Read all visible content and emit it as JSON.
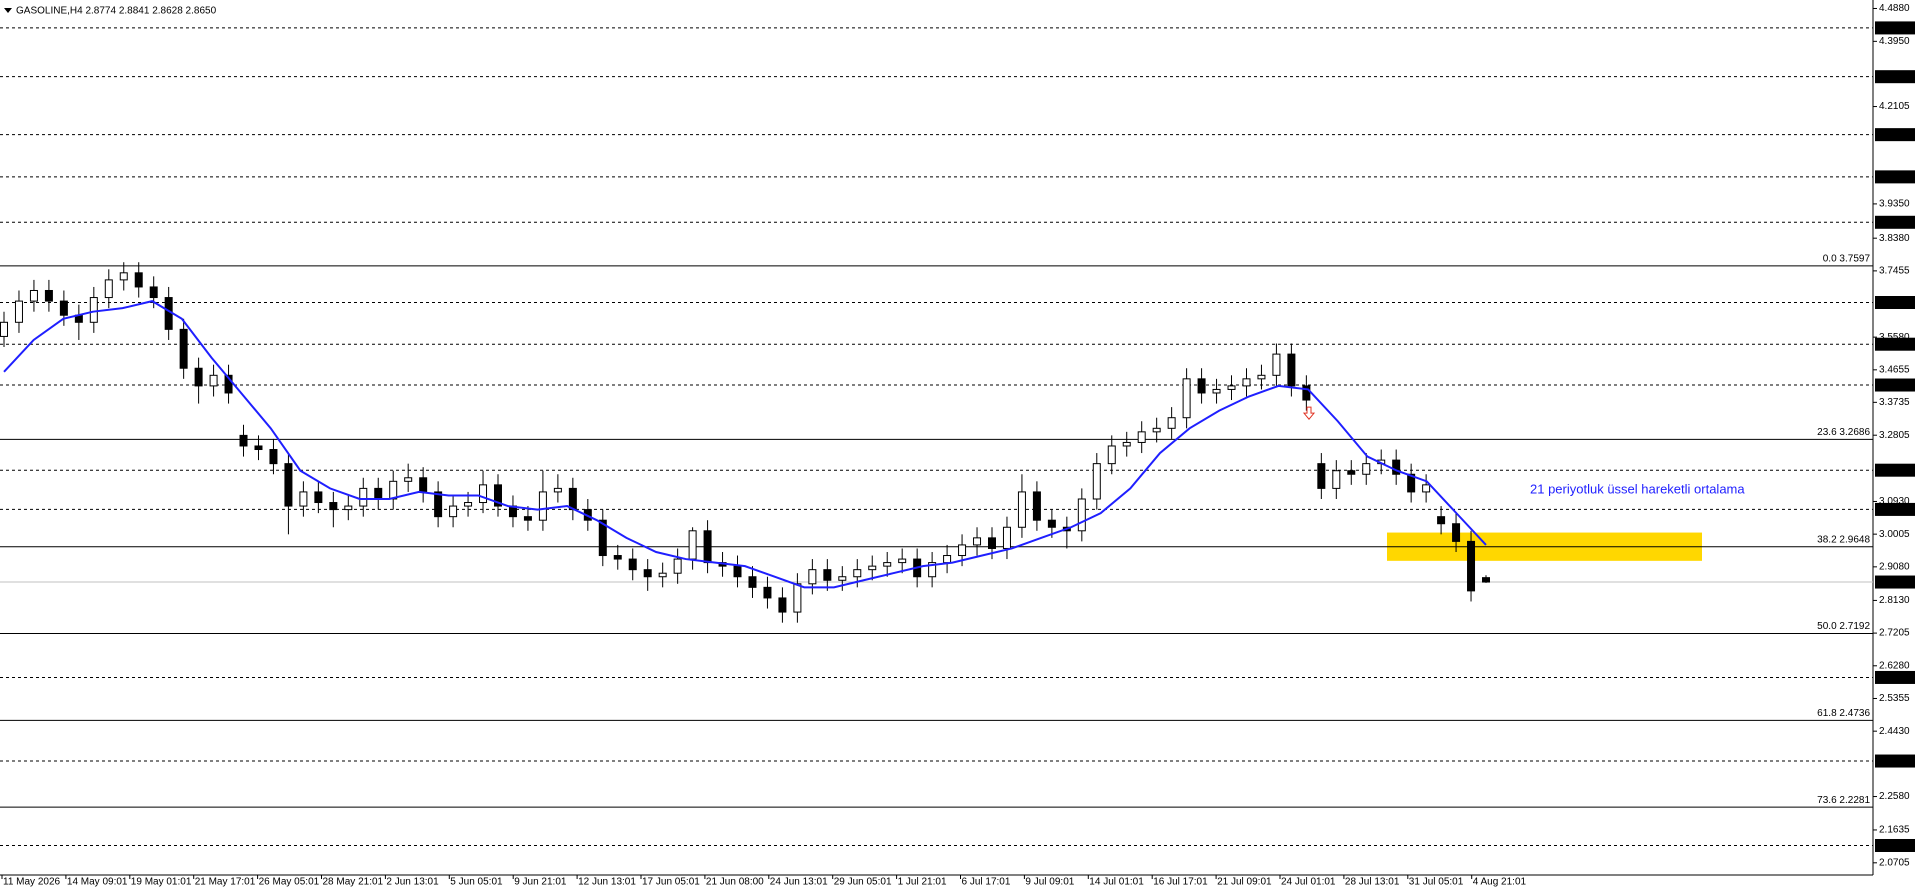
{
  "chart_data": {
    "type": "candlestick",
    "title": "GASOLINE,H4 2.8774 2.8841 2.8628 2.8650",
    "categories": [
      "11 May 2026",
      "14 May 09:01",
      "19 May 01:01",
      "21 May 17:01",
      "26 May 05:01",
      "28 May 21:01",
      "2 Jun 13:01",
      "5 Jun 05:01",
      "9 Jun 21:01",
      "12 Jun 13:01",
      "17 Jun 05:01",
      "21 Jun 08:00",
      "24 Jun 13:01",
      "29 Jun 05:01",
      "1 Jul 21:01",
      "6 Jul 17:01",
      "9 Jul 09:01",
      "14 Jul 01:01",
      "16 Jul 17:01",
      "21 Jul 09:01",
      "24 Jul 01:01",
      "28 Jul 13:01",
      "31 Jul 05:01",
      "4 Aug 21:01"
    ],
    "ylim": [
      2.036,
      4.512
    ],
    "yticks": [
      {
        "value": 4.488,
        "label": "4.4880"
      },
      {
        "value": 4.395,
        "label": "4.3950"
      },
      {
        "value": 4.2105,
        "label": "4.2105"
      },
      {
        "value": 3.935,
        "label": "3.9350"
      },
      {
        "value": 3.838,
        "label": "3.8380"
      },
      {
        "value": 3.7455,
        "label": "3.7455"
      },
      {
        "value": 3.558,
        "label": "3.5580"
      },
      {
        "value": 3.4655,
        "label": "3.4655"
      },
      {
        "value": 3.3735,
        "label": "3.3735"
      },
      {
        "value": 3.2805,
        "label": "3.2805"
      },
      {
        "value": 3.093,
        "label": "3.0930"
      },
      {
        "value": 3.0005,
        "label": "3.0005"
      },
      {
        "value": 2.908,
        "label": "2.9080"
      },
      {
        "value": 2.813,
        "label": "2.8130"
      },
      {
        "value": 2.7205,
        "label": "2.7205"
      },
      {
        "value": 2.628,
        "label": "2.6280"
      },
      {
        "value": 2.5355,
        "label": "2.5355"
      },
      {
        "value": 2.443,
        "label": "2.4430"
      },
      {
        "value": 2.258,
        "label": "2.2580"
      },
      {
        "value": 2.1635,
        "label": "2.1635"
      },
      {
        "value": 2.0705,
        "label": "2.0705"
      }
    ],
    "levels": [
      {
        "value": 4.433,
        "label": "4.4330"
      },
      {
        "value": 4.295,
        "label": "4.2950"
      },
      {
        "value": 4.131,
        "label": "4.1310"
      },
      {
        "value": 4.0115,
        "label": "4.0115"
      },
      {
        "value": 3.883,
        "label": "3.8830"
      },
      {
        "value": 3.656,
        "label": "3.6560"
      },
      {
        "value": 3.538,
        "label": "3.5380"
      },
      {
        "value": 3.4225,
        "label": "3.4225"
      },
      {
        "value": 3.1815,
        "label": "3.1815"
      },
      {
        "value": 3.0705,
        "label": "3.0705"
      },
      {
        "value": 2.595,
        "label": "2.5950"
      },
      {
        "value": 2.3585,
        "label": "2.3585"
      },
      {
        "value": 2.1195,
        "label": "2.1195"
      }
    ],
    "fib_levels": [
      {
        "value": 3.7597,
        "label": "0.0 3.7597"
      },
      {
        "value": 3.2686,
        "label": "23.6 3.2686"
      },
      {
        "value": 2.9648,
        "label": "38.2 2.9648"
      },
      {
        "value": 2.7192,
        "label": "50.0 2.7192"
      },
      {
        "value": 2.4736,
        "label": "61.8 2.4736"
      },
      {
        "value": 2.2281,
        "label": "73.6 2.2281"
      }
    ],
    "current_price": {
      "value": 2.865,
      "label": "2.8650"
    },
    "candles": [
      [
        3.56,
        3.63,
        3.53,
        3.6
      ],
      [
        3.6,
        3.69,
        3.57,
        3.66
      ],
      [
        3.66,
        3.72,
        3.63,
        3.69
      ],
      [
        3.69,
        3.72,
        3.63,
        3.66
      ],
      [
        3.66,
        3.69,
        3.59,
        3.62
      ],
      [
        3.62,
        3.65,
        3.55,
        3.6
      ],
      [
        3.6,
        3.7,
        3.57,
        3.67
      ],
      [
        3.67,
        3.75,
        3.64,
        3.72
      ],
      [
        3.72,
        3.77,
        3.69,
        3.74
      ],
      [
        3.74,
        3.77,
        3.67,
        3.7
      ],
      [
        3.7,
        3.73,
        3.64,
        3.67
      ],
      [
        3.67,
        3.7,
        3.55,
        3.58
      ],
      [
        3.58,
        3.61,
        3.44,
        3.47
      ],
      [
        3.47,
        3.5,
        3.37,
        3.42
      ],
      [
        3.42,
        3.48,
        3.39,
        3.45
      ],
      [
        3.45,
        3.48,
        3.37,
        3.4
      ],
      [
        3.28,
        3.31,
        3.22,
        3.25
      ],
      [
        3.25,
        3.28,
        3.21,
        3.24
      ],
      [
        3.24,
        3.27,
        3.17,
        3.2
      ],
      [
        3.2,
        3.23,
        3.0,
        3.08
      ],
      [
        3.08,
        3.15,
        3.05,
        3.12
      ],
      [
        3.12,
        3.15,
        3.06,
        3.09
      ],
      [
        3.09,
        3.12,
        3.02,
        3.07
      ],
      [
        3.07,
        3.11,
        3.04,
        3.08
      ],
      [
        3.08,
        3.16,
        3.05,
        3.13
      ],
      [
        3.13,
        3.16,
        3.07,
        3.1
      ],
      [
        3.1,
        3.18,
        3.07,
        3.15
      ],
      [
        3.15,
        3.2,
        3.12,
        3.16
      ],
      [
        3.16,
        3.19,
        3.09,
        3.12
      ],
      [
        3.12,
        3.15,
        3.02,
        3.05
      ],
      [
        3.05,
        3.11,
        3.02,
        3.08
      ],
      [
        3.08,
        3.12,
        3.05,
        3.09
      ],
      [
        3.09,
        3.18,
        3.06,
        3.14
      ],
      [
        3.14,
        3.17,
        3.05,
        3.08
      ],
      [
        3.08,
        3.11,
        3.02,
        3.05
      ],
      [
        3.05,
        3.08,
        3.01,
        3.04
      ],
      [
        3.04,
        3.18,
        3.01,
        3.12
      ],
      [
        3.12,
        3.17,
        3.09,
        3.13
      ],
      [
        3.13,
        3.16,
        3.04,
        3.07
      ],
      [
        3.07,
        3.1,
        3.01,
        3.04
      ],
      [
        3.04,
        3.07,
        2.91,
        2.94
      ],
      [
        2.94,
        2.97,
        2.9,
        2.93
      ],
      [
        2.93,
        2.96,
        2.87,
        2.9
      ],
      [
        2.9,
        2.93,
        2.84,
        2.88
      ],
      [
        2.88,
        2.92,
        2.85,
        2.89
      ],
      [
        2.89,
        2.96,
        2.86,
        2.93
      ],
      [
        2.93,
        3.02,
        2.9,
        3.01
      ],
      [
        3.01,
        3.04,
        2.89,
        2.92
      ],
      [
        2.92,
        2.95,
        2.88,
        2.91
      ],
      [
        2.91,
        2.94,
        2.85,
        2.88
      ],
      [
        2.88,
        2.91,
        2.82,
        2.85
      ],
      [
        2.85,
        2.88,
        2.79,
        2.82
      ],
      [
        2.82,
        2.85,
        2.75,
        2.78
      ],
      [
        2.78,
        2.89,
        2.75,
        2.86
      ],
      [
        2.86,
        2.93,
        2.83,
        2.9
      ],
      [
        2.9,
        2.93,
        2.84,
        2.87
      ],
      [
        2.87,
        2.91,
        2.84,
        2.88
      ],
      [
        2.88,
        2.93,
        2.85,
        2.9
      ],
      [
        2.9,
        2.94,
        2.87,
        2.91
      ],
      [
        2.91,
        2.95,
        2.88,
        2.92
      ],
      [
        2.92,
        2.96,
        2.89,
        2.93
      ],
      [
        2.93,
        2.96,
        2.85,
        2.88
      ],
      [
        2.88,
        2.95,
        2.85,
        2.92
      ],
      [
        2.92,
        2.97,
        2.89,
        2.94
      ],
      [
        2.94,
        3.0,
        2.91,
        2.97
      ],
      [
        2.97,
        3.02,
        2.94,
        2.99
      ],
      [
        2.99,
        3.02,
        2.93,
        2.96
      ],
      [
        2.96,
        3.05,
        2.93,
        3.02
      ],
      [
        3.02,
        3.17,
        2.99,
        3.12
      ],
      [
        3.12,
        3.15,
        3.01,
        3.04
      ],
      [
        3.04,
        3.07,
        2.99,
        3.02
      ],
      [
        3.02,
        3.05,
        2.96,
        3.01
      ],
      [
        3.01,
        3.13,
        2.98,
        3.1
      ],
      [
        3.1,
        3.23,
        3.07,
        3.2
      ],
      [
        3.2,
        3.28,
        3.17,
        3.25
      ],
      [
        3.25,
        3.29,
        3.22,
        3.26
      ],
      [
        3.26,
        3.32,
        3.23,
        3.29
      ],
      [
        3.29,
        3.33,
        3.26,
        3.3
      ],
      [
        3.3,
        3.36,
        3.27,
        3.33
      ],
      [
        3.33,
        3.47,
        3.3,
        3.44
      ],
      [
        3.44,
        3.47,
        3.37,
        3.4
      ],
      [
        3.4,
        3.44,
        3.37,
        3.41
      ],
      [
        3.41,
        3.45,
        3.38,
        3.42
      ],
      [
        3.42,
        3.47,
        3.39,
        3.44
      ],
      [
        3.44,
        3.48,
        3.41,
        3.45
      ],
      [
        3.45,
        3.54,
        3.42,
        3.51
      ],
      [
        3.51,
        3.54,
        3.39,
        3.42
      ],
      [
        3.42,
        3.45,
        3.35,
        3.38
      ],
      [
        3.2,
        3.23,
        3.1,
        3.13
      ],
      [
        3.13,
        3.21,
        3.1,
        3.18
      ],
      [
        3.18,
        3.21,
        3.14,
        3.17
      ],
      [
        3.17,
        3.23,
        3.14,
        3.2
      ],
      [
        3.2,
        3.24,
        3.17,
        3.21
      ],
      [
        3.21,
        3.24,
        3.14,
        3.17
      ],
      [
        3.17,
        3.2,
        3.09,
        3.12
      ],
      [
        3.12,
        3.17,
        3.09,
        3.14
      ],
      [
        3.05,
        3.08,
        3.0,
        3.03
      ],
      [
        3.03,
        3.06,
        2.95,
        2.98
      ],
      [
        2.98,
        3.01,
        2.81,
        2.84
      ],
      [
        2.8774,
        2.8841,
        2.8628,
        2.865
      ]
    ],
    "ema": {
      "color": "#1f1fff",
      "values": [
        3.46,
        3.55,
        3.61,
        3.63,
        3.64,
        3.66,
        3.61,
        3.5,
        3.4,
        3.3,
        3.18,
        3.13,
        3.1,
        3.1,
        3.12,
        3.11,
        3.11,
        3.08,
        3.07,
        3.08,
        3.04,
        2.99,
        2.95,
        2.93,
        2.92,
        2.91,
        2.88,
        2.85,
        2.85,
        2.87,
        2.89,
        2.91,
        2.92,
        2.94,
        2.96,
        2.99,
        3.02,
        3.06,
        3.13,
        3.23,
        3.3,
        3.35,
        3.39,
        3.42,
        3.41,
        3.32,
        3.22,
        3.18,
        3.15,
        3.06,
        2.97
      ]
    },
    "annotation": "21 periyotluk üssel hareketli ortalama",
    "highlight_zone": {
      "low": 2.925,
      "high": 3.005,
      "color": "#ffd700"
    },
    "arrow": {
      "value": 3.34,
      "color": "#e03020"
    }
  }
}
